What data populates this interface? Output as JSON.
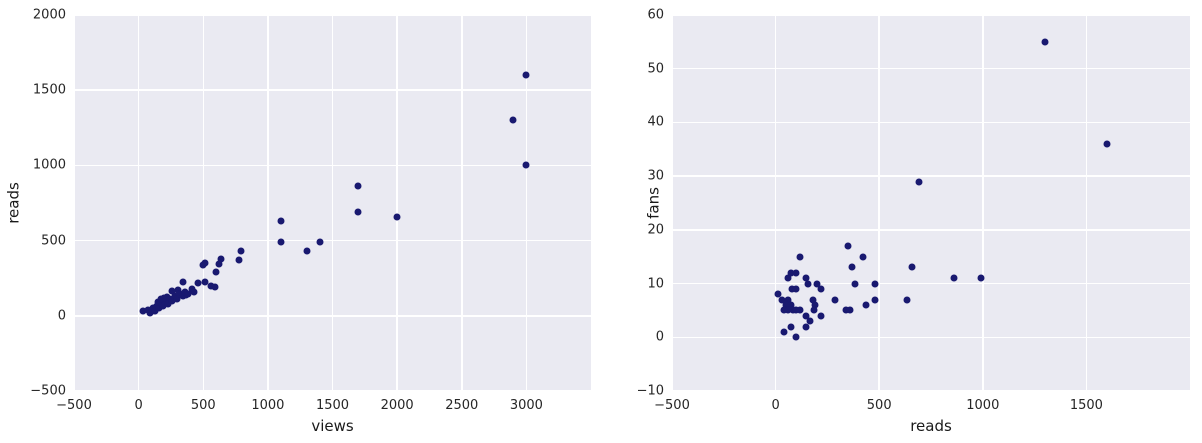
{
  "figure": {
    "background": "#ffffff",
    "axes_background": "#eaeaf2",
    "grid_color": "#ffffff",
    "scatter_color": "#191970",
    "tick_label_color": "#262626",
    "axis_label_color": "#1a1a1a"
  },
  "chart_data": [
    {
      "type": "scatter",
      "title": "",
      "xlabel": "views",
      "ylabel": "reads",
      "xlim": [
        -500,
        3500
      ],
      "ylim": [
        -500,
        2000
      ],
      "grid": true,
      "legend": false,
      "xticks": [
        {
          "v": -500,
          "label": "−500"
        },
        {
          "v": 0,
          "label": "0"
        },
        {
          "v": 500,
          "label": "500"
        },
        {
          "v": 1000,
          "label": "1000"
        },
        {
          "v": 1500,
          "label": "1500"
        },
        {
          "v": 2000,
          "label": "2000"
        },
        {
          "v": 2500,
          "label": "2500"
        },
        {
          "v": 3000,
          "label": "3000"
        }
      ],
      "yticks": [
        {
          "v": -500,
          "label": "−500"
        },
        {
          "v": 0,
          "label": "0"
        },
        {
          "v": 500,
          "label": "500"
        },
        {
          "v": 1000,
          "label": "1000"
        },
        {
          "v": 1500,
          "label": "1500"
        },
        {
          "v": 2000,
          "label": "2000"
        }
      ],
      "points": [
        [
          3000,
          1600
        ],
        [
          2900,
          1300
        ],
        [
          3000,
          1000
        ],
        [
          1700,
          860
        ],
        [
          1700,
          690
        ],
        [
          2000,
          660
        ],
        [
          1100,
          630
        ],
        [
          1400,
          490
        ],
        [
          1100,
          490
        ],
        [
          1300,
          430
        ],
        [
          790,
          430
        ],
        [
          780,
          370
        ],
        [
          640,
          380
        ],
        [
          625,
          345
        ],
        [
          600,
          290
        ],
        [
          510,
          350
        ],
        [
          495,
          340
        ],
        [
          460,
          220
        ],
        [
          510,
          225
        ],
        [
          560,
          200
        ],
        [
          590,
          190
        ],
        [
          345,
          225
        ],
        [
          415,
          175
        ],
        [
          430,
          155
        ],
        [
          305,
          170
        ],
        [
          260,
          165
        ],
        [
          365,
          135
        ],
        [
          30,
          35
        ],
        [
          75,
          40
        ],
        [
          90,
          20
        ],
        [
          105,
          30
        ],
        [
          110,
          55
        ],
        [
          125,
          35
        ],
        [
          135,
          60
        ],
        [
          145,
          65
        ],
        [
          160,
          50
        ],
        [
          180,
          80
        ],
        [
          190,
          65
        ],
        [
          210,
          100
        ],
        [
          230,
          80
        ],
        [
          245,
          115
        ],
        [
          260,
          100
        ],
        [
          280,
          130
        ],
        [
          300,
          115
        ],
        [
          320,
          145
        ],
        [
          340,
          130
        ],
        [
          360,
          160
        ],
        [
          385,
          145
        ],
        [
          150,
          90
        ],
        [
          170,
          110
        ],
        [
          200,
          120
        ],
        [
          220,
          125
        ]
      ]
    },
    {
      "type": "scatter",
      "title": "",
      "xlabel": "reads",
      "ylabel": "fans",
      "xlim": [
        -500,
        2000
      ],
      "ylim": [
        -10,
        60
      ],
      "grid": true,
      "legend": false,
      "xticks": [
        {
          "v": -500,
          "label": "−500"
        },
        {
          "v": 0,
          "label": "0"
        },
        {
          "v": 500,
          "label": "500"
        },
        {
          "v": 1000,
          "label": "1000"
        },
        {
          "v": 1500,
          "label": "1500"
        }
      ],
      "yticks": [
        {
          "v": -10,
          "label": "−10"
        },
        {
          "v": 0,
          "label": "0"
        },
        {
          "v": 10,
          "label": "10"
        },
        {
          "v": 20,
          "label": "20"
        },
        {
          "v": 30,
          "label": "30"
        },
        {
          "v": 40,
          "label": "40"
        },
        {
          "v": 50,
          "label": "50"
        },
        {
          "v": 60,
          "label": "60"
        }
      ],
      "points": [
        [
          1300,
          55
        ],
        [
          1600,
          36
        ],
        [
          690,
          29
        ],
        [
          350,
          17
        ],
        [
          420,
          15
        ],
        [
          120,
          15
        ],
        [
          370,
          13
        ],
        [
          660,
          13
        ],
        [
          860,
          11
        ],
        [
          990,
          11
        ],
        [
          60,
          11
        ],
        [
          145,
          11
        ],
        [
          75,
          12
        ],
        [
          100,
          12
        ],
        [
          155,
          10
        ],
        [
          200,
          10
        ],
        [
          385,
          10
        ],
        [
          480,
          10
        ],
        [
          220,
          9
        ],
        [
          80,
          9
        ],
        [
          100,
          9
        ],
        [
          10,
          8
        ],
        [
          30,
          7
        ],
        [
          60,
          7
        ],
        [
          180,
          7
        ],
        [
          285,
          7
        ],
        [
          480,
          7
        ],
        [
          635,
          7
        ],
        [
          190,
          6
        ],
        [
          435,
          6
        ],
        [
          75,
          6
        ],
        [
          50,
          6
        ],
        [
          85,
          5
        ],
        [
          60,
          5
        ],
        [
          40,
          5
        ],
        [
          100,
          5
        ],
        [
          120,
          5
        ],
        [
          185,
          5
        ],
        [
          340,
          5
        ],
        [
          360,
          5
        ],
        [
          145,
          4
        ],
        [
          220,
          4
        ],
        [
          165,
          3
        ],
        [
          75,
          2
        ],
        [
          145,
          2
        ],
        [
          40,
          1
        ],
        [
          100,
          0
        ]
      ]
    }
  ]
}
